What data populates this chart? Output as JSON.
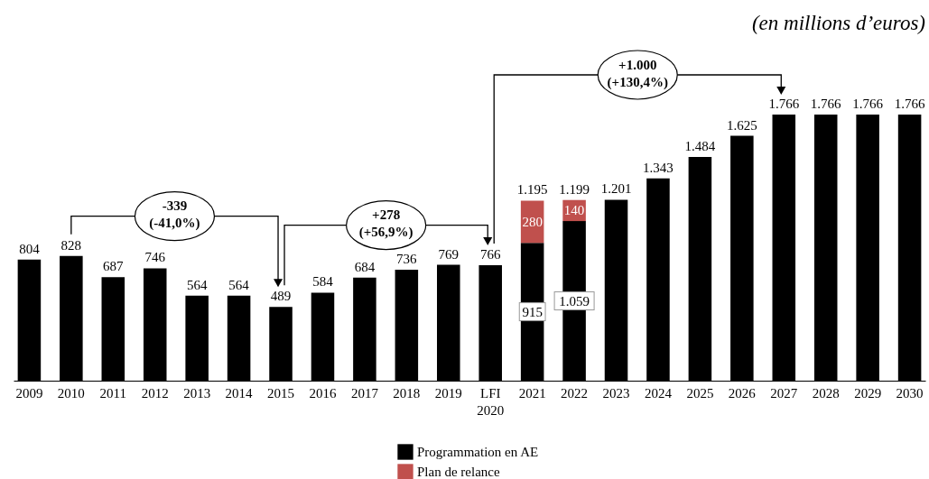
{
  "chart_data": {
    "type": "bar",
    "subtitle": "(en millions d’euros)",
    "categories": [
      "2009",
      "2010",
      "2011",
      "2012",
      "2013",
      "2014",
      "2015",
      "2016",
      "2017",
      "2018",
      "2019",
      "LFI\n2020",
      "2021",
      "2022",
      "2023",
      "2024",
      "2025",
      "2026",
      "2027",
      "2028",
      "2029",
      "2030"
    ],
    "stacked": true,
    "tick_labels": "x",
    "legend": "bottom",
    "series": [
      {
        "name": "Programmation en AE",
        "color": "#000000",
        "values": [
          804,
          828,
          687,
          746,
          564,
          564,
          489,
          584,
          684,
          736,
          769,
          766,
          915,
          1059,
          1201,
          1343,
          1484,
          1625,
          1766,
          1766,
          1766,
          1766
        ],
        "value_labels": [
          "804",
          "828",
          "687",
          "746",
          "564",
          "564",
          "489",
          "584",
          "684",
          "736",
          "769",
          "766",
          "915",
          "1.059",
          "1.201",
          "1.343",
          "1.484",
          "1.625",
          "1.766",
          "1.766",
          "1.766",
          "1.766"
        ]
      },
      {
        "name": "Plan de relance",
        "color": "#c0504d",
        "values": [
          null,
          null,
          null,
          null,
          null,
          null,
          null,
          null,
          null,
          null,
          null,
          null,
          280,
          140,
          null,
          null,
          null,
          null,
          null,
          null,
          null,
          null
        ],
        "value_labels": [
          null,
          null,
          null,
          null,
          null,
          null,
          null,
          null,
          null,
          null,
          null,
          null,
          "280",
          "140",
          null,
          null,
          null,
          null,
          null,
          null,
          null,
          null
        ]
      }
    ],
    "totals": [
      null,
      null,
      null,
      null,
      null,
      null,
      null,
      null,
      null,
      null,
      null,
      null,
      "1.195",
      "1.199",
      null,
      null,
      null,
      null,
      null,
      null,
      null,
      null
    ],
    "annotations": [
      "-339\n(-41,0%)",
      "+278\n(+56,9%)",
      "+1.000\n(+130,4%)"
    ]
  }
}
